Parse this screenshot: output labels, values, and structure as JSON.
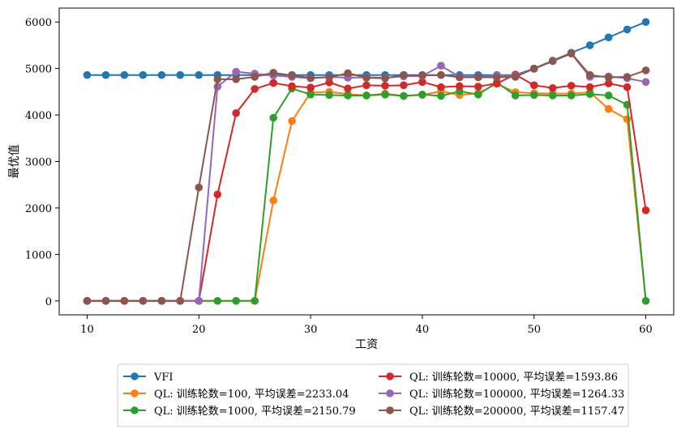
{
  "chart_data": {
    "type": "line",
    "xlabel": "工资",
    "ylabel": "最优值",
    "xlim": [
      7.5,
      62.5
    ],
    "ylim": [
      -300,
      6300
    ],
    "xticks": [
      10,
      20,
      30,
      40,
      50,
      60
    ],
    "yticks": [
      0,
      1000,
      2000,
      3000,
      4000,
      5000,
      6000
    ],
    "legend_position": "bottom-center-outside",
    "grid": false,
    "x": [
      10.0,
      11.67,
      13.33,
      15.0,
      16.67,
      18.33,
      20.0,
      21.67,
      23.33,
      25.0,
      26.67,
      28.33,
      30.0,
      31.67,
      33.33,
      35.0,
      36.67,
      38.33,
      40.0,
      41.67,
      43.33,
      45.0,
      46.67,
      48.33,
      50.0,
      51.67,
      53.33,
      55.0,
      56.67,
      58.33,
      60.0
    ],
    "series": [
      {
        "name": "VFI",
        "color": "#1f77b4",
        "values": [
          4860,
          4860,
          4860,
          4860,
          4860,
          4860,
          4860,
          4860,
          4860,
          4860,
          4860,
          4860,
          4860,
          4860,
          4860,
          4860,
          4860,
          4860,
          4860,
          4860,
          4860,
          4860,
          4860,
          4860,
          5000,
          5170,
          5340,
          5500,
          5670,
          5840,
          6000
        ]
      },
      {
        "name": "QL: 训练轮数=100, 平均误差=2233.04",
        "color": "#ff7f0e",
        "values": [
          0,
          0,
          0,
          0,
          0,
          0,
          0,
          0,
          0,
          0,
          2160,
          3870,
          4480,
          4500,
          4450,
          4420,
          4460,
          4410,
          4430,
          4510,
          4430,
          4470,
          4670,
          4490,
          4470,
          4460,
          4460,
          4490,
          4130,
          3910,
          0
        ]
      },
      {
        "name": "QL: 训练轮数=1000, 平均误差=2150.79",
        "color": "#2ca02c",
        "values": [
          0,
          0,
          0,
          0,
          0,
          0,
          0,
          0,
          0,
          0,
          3940,
          4570,
          4440,
          4430,
          4420,
          4420,
          4440,
          4410,
          4440,
          4410,
          4510,
          4440,
          4700,
          4420,
          4430,
          4420,
          4420,
          4450,
          4420,
          4220,
          0
        ]
      },
      {
        "name": "QL: 训练轮数=10000, 平均误差=1593.86",
        "color": "#d62728",
        "values": [
          0,
          0,
          0,
          0,
          0,
          0,
          0,
          2290,
          4040,
          4560,
          4690,
          4620,
          4590,
          4700,
          4570,
          4640,
          4630,
          4640,
          4710,
          4600,
          4620,
          4610,
          4680,
          4870,
          4640,
          4580,
          4630,
          4600,
          4680,
          4600,
          1950
        ]
      },
      {
        "name": "QL: 训练轮数=100000, 平均误差=1264.33",
        "color": "#9467bd",
        "values": [
          0,
          0,
          0,
          0,
          0,
          0,
          0,
          4610,
          4930,
          4890,
          4850,
          4820,
          4790,
          4820,
          4800,
          4810,
          4800,
          4830,
          4840,
          5060,
          4820,
          4820,
          4850,
          4840,
          4990,
          5160,
          5320,
          4820,
          4830,
          4790,
          4710
        ]
      },
      {
        "name": "QL: 训练轮数=200000, 平均误差=1157.47",
        "color": "#8c564b",
        "values": [
          0,
          0,
          0,
          0,
          0,
          0,
          2440,
          4770,
          4770,
          4820,
          4910,
          4850,
          4800,
          4810,
          4900,
          4800,
          4790,
          4860,
          4850,
          4860,
          4810,
          4810,
          4810,
          4820,
          5000,
          5160,
          5330,
          4860,
          4810,
          4820,
          4960
        ]
      }
    ]
  }
}
